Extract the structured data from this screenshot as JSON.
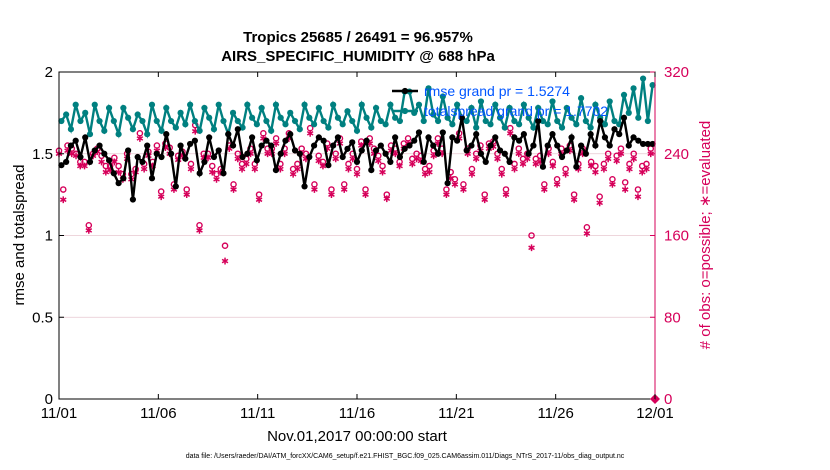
{
  "chart_data": {
    "type": "line",
    "title": "Tropics 25685 / 26491 = 96.957%",
    "subtitle": "AIRS_SPECIFIC_HUMIDITY @ 688 hPa",
    "xlabel": "Nov.01,2017 00:00:00 start",
    "ylabel": "rmse and totalspread",
    "y2label": "# of obs: o=possible; ∗=evaluated",
    "footer": "data file: /Users/raeder/DAI/ATM_forcXX/CAM6_setup/f.e21.FHIST_BGC.f09_025.CAM6assim.011/Diags_NTrS_2017-11/obs_diag_output.nc",
    "xlim": [
      0,
      30
    ],
    "ylim": [
      0,
      2
    ],
    "y2lim": [
      0,
      320
    ],
    "x_tick_values": [
      0,
      5,
      10,
      15,
      20,
      25,
      30
    ],
    "x_tick_labels": [
      "11/01",
      "11/06",
      "11/11",
      "11/16",
      "11/21",
      "11/26",
      "12/01"
    ],
    "y_tick_values": [
      0,
      0.5,
      1,
      1.5,
      2
    ],
    "y_tick_labels": [
      "0",
      "0.5",
      "1",
      "1.5",
      "2"
    ],
    "y2_tick_values": [
      0,
      80,
      160,
      240,
      320
    ],
    "y2_tick_labels": [
      "0",
      "80",
      "160",
      "240",
      "320"
    ],
    "legend": [
      {
        "label": "rmse grand pr = 1.5274",
        "color": "#000000"
      },
      {
        "label": "totalspread grand pr = 1.7702",
        "color": "#008080"
      }
    ],
    "colors": {
      "rmse": "#000000",
      "spread": "#008080",
      "obs": "#d6005a",
      "legend_text": "#0055ff",
      "grid": "#e8c8d0"
    },
    "series": [
      {
        "name": "rmse",
        "axis": "left",
        "values": [
          1.43,
          1.45,
          1.55,
          1.58,
          1.48,
          1.6,
          1.45,
          1.52,
          1.55,
          1.5,
          1.46,
          1.38,
          1.32,
          1.35,
          1.52,
          1.22,
          1.48,
          1.45,
          1.55,
          1.35,
          1.5,
          1.48,
          1.62,
          1.5,
          1.3,
          1.55,
          1.47,
          1.56,
          1.58,
          1.38,
          1.45,
          1.6,
          1.48,
          1.52,
          1.38,
          1.62,
          1.55,
          1.65,
          1.48,
          1.5,
          1.6,
          1.46,
          1.55,
          1.58,
          1.55,
          1.4,
          1.5,
          1.58,
          1.62,
          1.52,
          1.5,
          1.3,
          1.48,
          1.55,
          1.6,
          1.58,
          1.43,
          1.55,
          1.6,
          1.48,
          1.53,
          1.57,
          1.45,
          1.52,
          1.58,
          1.4,
          1.52,
          1.55,
          1.5,
          1.45,
          1.6,
          1.48,
          1.53,
          1.55,
          1.58,
          1.63,
          1.45,
          1.6,
          1.55,
          1.5,
          1.63,
          1.32,
          1.6,
          1.58,
          1.72,
          1.52,
          1.55,
          1.62,
          1.5,
          1.45,
          1.55,
          1.6,
          1.52,
          1.5,
          1.45,
          1.6,
          1.58,
          1.62,
          1.5,
          1.55,
          1.7,
          1.42,
          1.55,
          1.62,
          1.55,
          1.48,
          1.52,
          1.6,
          1.42,
          1.55,
          1.5,
          1.62,
          1.55,
          1.7,
          1.6,
          1.55,
          1.65,
          1.62,
          1.72,
          1.55,
          1.6,
          1.58,
          1.56,
          1.56,
          1.56
        ]
      },
      {
        "name": "totalspread",
        "axis": "left",
        "values": [
          1.7,
          1.74,
          1.65,
          1.8,
          1.7,
          1.75,
          1.62,
          1.8,
          1.7,
          1.64,
          1.78,
          1.7,
          1.62,
          1.78,
          1.72,
          1.65,
          1.74,
          1.7,
          1.62,
          1.8,
          1.7,
          1.64,
          1.78,
          1.7,
          1.66,
          1.75,
          1.68,
          1.8,
          1.7,
          1.64,
          1.78,
          1.72,
          1.65,
          1.8,
          1.7,
          1.62,
          1.75,
          1.7,
          1.66,
          1.8,
          1.72,
          1.68,
          1.78,
          1.7,
          1.64,
          1.8,
          1.72,
          1.68,
          1.75,
          1.7,
          1.65,
          1.8,
          1.72,
          1.68,
          1.78,
          1.7,
          1.66,
          1.8,
          1.72,
          1.68,
          1.76,
          1.7,
          1.64,
          1.8,
          1.72,
          1.66,
          1.78,
          1.7,
          1.68,
          1.8,
          1.72,
          1.7,
          1.88,
          1.88,
          1.75,
          1.8,
          1.7,
          1.9,
          1.74,
          1.7,
          1.85,
          1.72,
          1.68,
          1.8,
          1.72,
          1.7,
          1.78,
          1.66,
          1.82,
          1.7,
          1.68,
          1.8,
          1.72,
          1.66,
          1.78,
          1.7,
          1.68,
          1.8,
          1.72,
          1.66,
          1.78,
          1.7,
          1.68,
          1.82,
          1.7,
          1.66,
          1.78,
          1.72,
          1.68,
          1.84,
          1.7,
          1.66,
          1.8,
          1.72,
          1.68,
          1.82,
          1.7,
          1.68,
          1.86,
          1.75,
          1.9,
          1.72,
          1.96,
          1.7,
          1.92
        ]
      },
      {
        "name": "possible obs",
        "axis": "right",
        "marker": "o",
        "values": [
          243,
          205,
          248,
          245,
          240,
          232,
          232,
          170,
          240,
          245,
          238,
          228,
          228,
          236,
          228,
          220,
          240,
          220,
          225,
          260,
          230,
          242,
          232,
          248,
          203,
          250,
          246,
          210,
          238,
          242,
          205,
          230,
          268,
          170,
          240,
          240,
          228,
          220,
          225,
          150,
          248,
          210,
          240,
          230,
          235,
          245,
          230,
          200,
          260,
          245,
          245,
          255,
          230,
          245,
          260,
          225,
          230,
          245,
          240,
          265,
          210,
          238,
          232,
          250,
          205,
          240,
          255,
          210,
          230,
          240,
          225,
          252,
          205,
          255,
          245,
          238,
          228,
          200,
          248,
          245,
          232,
          250,
          255,
          235,
          240,
          238,
          225,
          228,
          243,
          255,
          245,
          205,
          222,
          215,
          260,
          210,
          245,
          225,
          240,
          248,
          200,
          250,
          252,
          240,
          225,
          205,
          265,
          230,
          245,
          235,
          240,
          160,
          235,
          238,
          210,
          245,
          232,
          215,
          245,
          225,
          248,
          200,
          230,
          245,
          168,
          232,
          228,
          198,
          230,
          240,
          215,
          238,
          245,
          212,
          230,
          240,
          205,
          228,
          230,
          245,
          0
        ]
      },
      {
        "name": "evaluated obs",
        "axis": "right",
        "marker": "*",
        "values": [
          240,
          195,
          243,
          240,
          238,
          228,
          228,
          165,
          238,
          242,
          232,
          222,
          224,
          232,
          222,
          215,
          235,
          215,
          222,
          255,
          225,
          238,
          228,
          243,
          198,
          246,
          240,
          205,
          234,
          238,
          200,
          225,
          262,
          165,
          236,
          236,
          222,
          215,
          222,
          135,
          245,
          205,
          235,
          225,
          230,
          240,
          225,
          195,
          255,
          240,
          240,
          250,
          225,
          240,
          255,
          220,
          225,
          240,
          235,
          260,
          205,
          233,
          228,
          245,
          200,
          235,
          250,
          205,
          225,
          235,
          220,
          248,
          200,
          250,
          240,
          233,
          222,
          196,
          243,
          240,
          228,
          245,
          250,
          230,
          235,
          233,
          220,
          222,
          238,
          250,
          240,
          200,
          216,
          210,
          255,
          205,
          240,
          220,
          235,
          243,
          195,
          245,
          247,
          235,
          220,
          200,
          260,
          225,
          240,
          230,
          235,
          148,
          230,
          232,
          205,
          240,
          228,
          210,
          240,
          220,
          243,
          195,
          225,
          240,
          162,
          228,
          222,
          192,
          225,
          235,
          210,
          233,
          240,
          205,
          225,
          235,
          198,
          222,
          225,
          240,
          0
        ]
      }
    ]
  }
}
